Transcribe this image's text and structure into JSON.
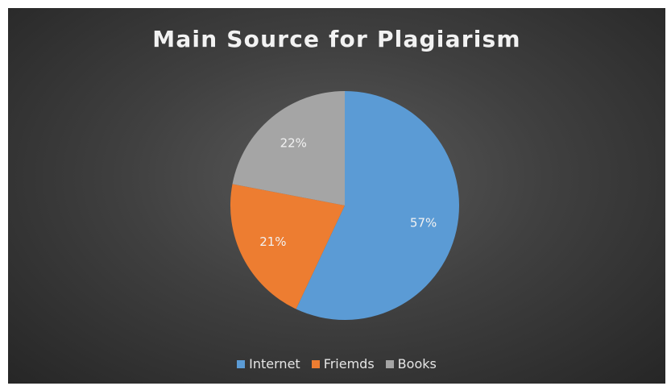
{
  "chart_data": {
    "type": "pie",
    "title": "Main Source for Plagiarism",
    "categories": [
      "Internet",
      "Friemds",
      "Books"
    ],
    "values": [
      57,
      21,
      22
    ],
    "labels": [
      "57%",
      "21%",
      "22%"
    ],
    "colors": [
      "#5b9bd5",
      "#ed7d31",
      "#a5a5a5"
    ],
    "legend": "bottom"
  }
}
